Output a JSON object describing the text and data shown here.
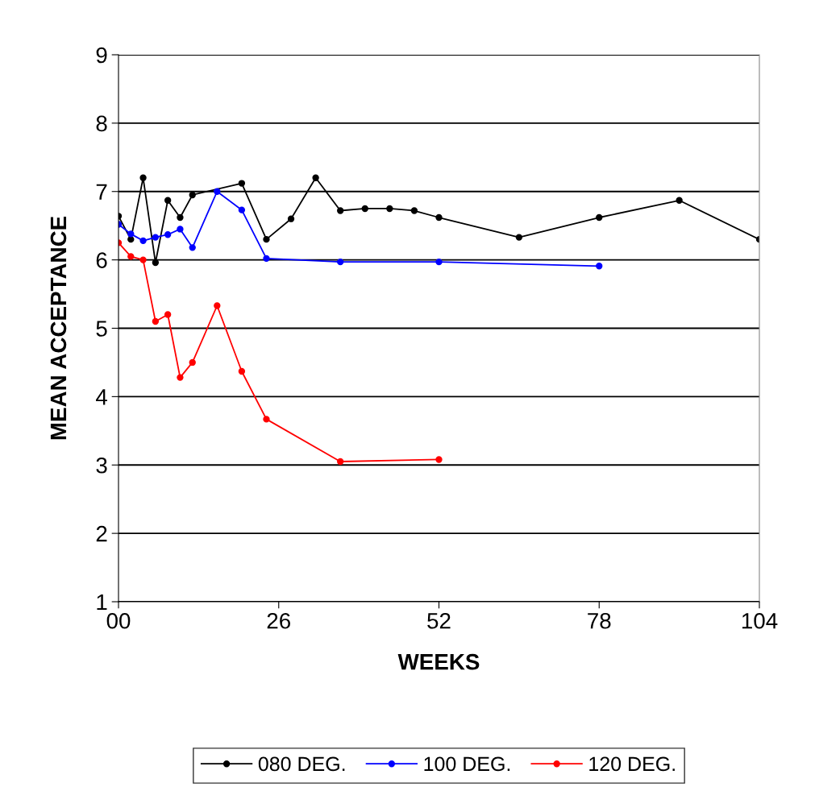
{
  "chart_data": {
    "type": "line",
    "xlabel": "WEEKS",
    "ylabel": "MEAN ACCEPTANCE",
    "xlim": [
      0,
      104
    ],
    "xticks": [
      {
        "value": 0,
        "label": "00"
      },
      26,
      52,
      78,
      104
    ],
    "ylim": [
      1,
      9
    ],
    "yticks": [
      1,
      2,
      3,
      4,
      5,
      6,
      7,
      8,
      9
    ],
    "grid": "y",
    "legend": "bottom",
    "marker": "circle",
    "line_style": "solid",
    "series": [
      {
        "name": "080 DEG.",
        "color": "#000000",
        "x": [
          0,
          2,
          4,
          6,
          8,
          10,
          12,
          20,
          24,
          28,
          32,
          36,
          40,
          44,
          48,
          52,
          65,
          78,
          91,
          104
        ],
        "values": [
          6.64,
          6.3,
          7.2,
          5.96,
          6.87,
          6.62,
          6.95,
          7.12,
          6.3,
          6.6,
          7.2,
          6.72,
          6.75,
          6.75,
          6.72,
          6.62,
          6.33,
          6.62,
          6.87,
          6.3
        ]
      },
      {
        "name": "100 DEG.",
        "color": "#0000ff",
        "x": [
          0,
          2,
          4,
          6,
          8,
          10,
          12,
          16,
          20,
          24,
          36,
          52,
          78
        ],
        "values": [
          6.52,
          6.38,
          6.28,
          6.33,
          6.37,
          6.45,
          6.18,
          7.0,
          6.73,
          6.02,
          5.97,
          5.97,
          5.91
        ]
      },
      {
        "name": "120 DEG.",
        "color": "#ff0000",
        "x": [
          0,
          2,
          4,
          6,
          8,
          10,
          12,
          16,
          20,
          24,
          36,
          52
        ],
        "values": [
          6.25,
          6.05,
          6.0,
          5.1,
          5.2,
          4.28,
          4.5,
          5.33,
          4.37,
          3.67,
          3.05,
          3.08
        ]
      }
    ]
  }
}
